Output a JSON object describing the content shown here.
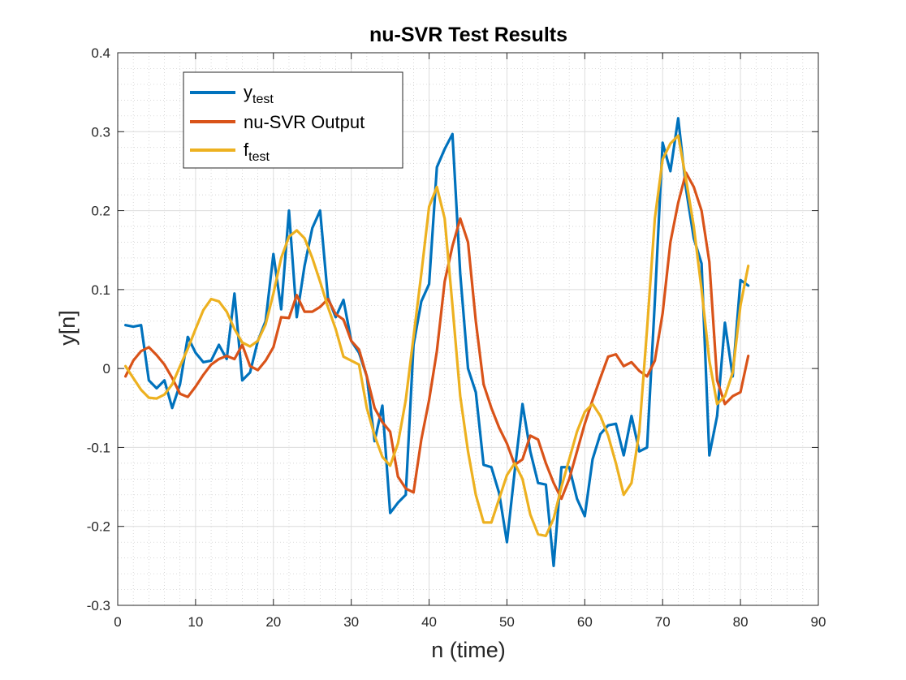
{
  "chart_data": {
    "type": "line",
    "title": "nu-SVR Test Results",
    "xlabel": "n (time)",
    "ylabel": "y[n]",
    "xlim": [
      0,
      90
    ],
    "ylim": [
      -0.3,
      0.4
    ],
    "xticks": [
      0,
      10,
      20,
      30,
      40,
      50,
      60,
      70,
      80,
      90
    ],
    "yticks": [
      -0.3,
      -0.2,
      -0.1,
      0,
      0.1,
      0.2,
      0.3,
      0.4
    ],
    "xtick_labels": [
      "0",
      "10",
      "20",
      "30",
      "40",
      "50",
      "60",
      "70",
      "80",
      "90"
    ],
    "ytick_labels": [
      "-0.3",
      "-0.2",
      "-0.1",
      "0",
      "0.1",
      "0.2",
      "0.3",
      "0.4"
    ],
    "grid": "major and minor, dotted",
    "legend_position": "top-left",
    "x": [
      1,
      2,
      3,
      4,
      5,
      6,
      7,
      8,
      9,
      10,
      11,
      12,
      13,
      14,
      15,
      16,
      17,
      18,
      19,
      20,
      21,
      22,
      23,
      24,
      25,
      26,
      27,
      28,
      29,
      30,
      31,
      32,
      33,
      34,
      35,
      36,
      37,
      38,
      39,
      40,
      41,
      42,
      43,
      44,
      45,
      46,
      47,
      48,
      49,
      50,
      51,
      52,
      53,
      54,
      55,
      56,
      57,
      58,
      59,
      60,
      61,
      62,
      63,
      64,
      65,
      66,
      67,
      68,
      69,
      70,
      71,
      72,
      73,
      74,
      75,
      76,
      77,
      78,
      79,
      80,
      81
    ],
    "series": [
      {
        "name": "y",
        "name_subscript": "test",
        "color": "#0072BD",
        "values": [
          0.055,
          0.053,
          0.055,
          -0.015,
          -0.025,
          -0.015,
          -0.05,
          -0.02,
          0.04,
          0.02,
          0.008,
          0.01,
          0.03,
          0.012,
          0.095,
          -0.015,
          -0.005,
          0.035,
          0.06,
          0.145,
          0.075,
          0.2,
          0.065,
          0.13,
          0.178,
          0.2,
          0.09,
          0.065,
          0.087,
          0.035,
          0.02,
          -0.01,
          -0.092,
          -0.047,
          -0.183,
          -0.17,
          -0.16,
          0.03,
          0.085,
          0.107,
          0.255,
          0.278,
          0.297,
          0.12,
          0,
          -0.03,
          -0.122,
          -0.125,
          -0.158,
          -0.22,
          -0.13,
          -0.045,
          -0.105,
          -0.145,
          -0.147,
          -0.25,
          -0.125,
          -0.125,
          -0.165,
          -0.187,
          -0.115,
          -0.083,
          -0.072,
          -0.07,
          -0.11,
          -0.06,
          -0.105,
          -0.1,
          0.085,
          0.286,
          0.25,
          0.317,
          0.228,
          0.165,
          0.133,
          -0.11,
          -0.06,
          0.058,
          -0.01,
          0.112,
          0.105
        ]
      },
      {
        "name": "nu-SVR Output",
        "color": "#D95319",
        "values": [
          -0.01,
          0.01,
          0.022,
          0.027,
          0.017,
          0.005,
          -0.012,
          -0.032,
          -0.036,
          -0.023,
          -0.008,
          0.005,
          0.012,
          0.016,
          0.012,
          0.03,
          0.003,
          -0.002,
          0.01,
          0.027,
          0.065,
          0.064,
          0.093,
          0.072,
          0.072,
          0.078,
          0.088,
          0.069,
          0.062,
          0.035,
          0.024,
          -0.01,
          -0.05,
          -0.068,
          -0.08,
          -0.137,
          -0.152,
          -0.157,
          -0.09,
          -0.04,
          0.022,
          0.11,
          0.155,
          0.19,
          0.16,
          0.06,
          -0.02,
          -0.05,
          -0.075,
          -0.095,
          -0.122,
          -0.115,
          -0.085,
          -0.09,
          -0.12,
          -0.145,
          -0.165,
          -0.14,
          -0.105,
          -0.07,
          -0.04,
          -0.012,
          0.015,
          0.018,
          0.003,
          0.008,
          -0.003,
          -0.01,
          0.01,
          0.07,
          0.16,
          0.21,
          0.248,
          0.23,
          0.2,
          0.135,
          -0.015,
          -0.045,
          -0.035,
          -0.03,
          0.016
        ]
      },
      {
        "name": "f",
        "name_subscript": "test",
        "color": "#EDB120",
        "values": [
          0.003,
          -0.012,
          -0.027,
          -0.037,
          -0.038,
          -0.033,
          -0.02,
          0.003,
          0.025,
          0.05,
          0.074,
          0.088,
          0.085,
          0.072,
          0.05,
          0.033,
          0.028,
          0.035,
          0.056,
          0.095,
          0.14,
          0.167,
          0.175,
          0.165,
          0.14,
          0.11,
          0.078,
          0.05,
          0.015,
          0.01,
          0.005,
          -0.05,
          -0.085,
          -0.112,
          -0.123,
          -0.095,
          -0.04,
          0.04,
          0.12,
          0.205,
          0.23,
          0.19,
          0.08,
          -0.035,
          -0.105,
          -0.16,
          -0.195,
          -0.195,
          -0.165,
          -0.135,
          -0.12,
          -0.14,
          -0.185,
          -0.21,
          -0.212,
          -0.19,
          -0.15,
          -0.115,
          -0.08,
          -0.055,
          -0.045,
          -0.06,
          -0.085,
          -0.12,
          -0.16,
          -0.145,
          -0.08,
          0.05,
          0.19,
          0.265,
          0.285,
          0.295,
          0.24,
          0.18,
          0.1,
          0.01,
          -0.045,
          -0.035,
          -0.005,
          0.08,
          0.13
        ]
      }
    ]
  }
}
